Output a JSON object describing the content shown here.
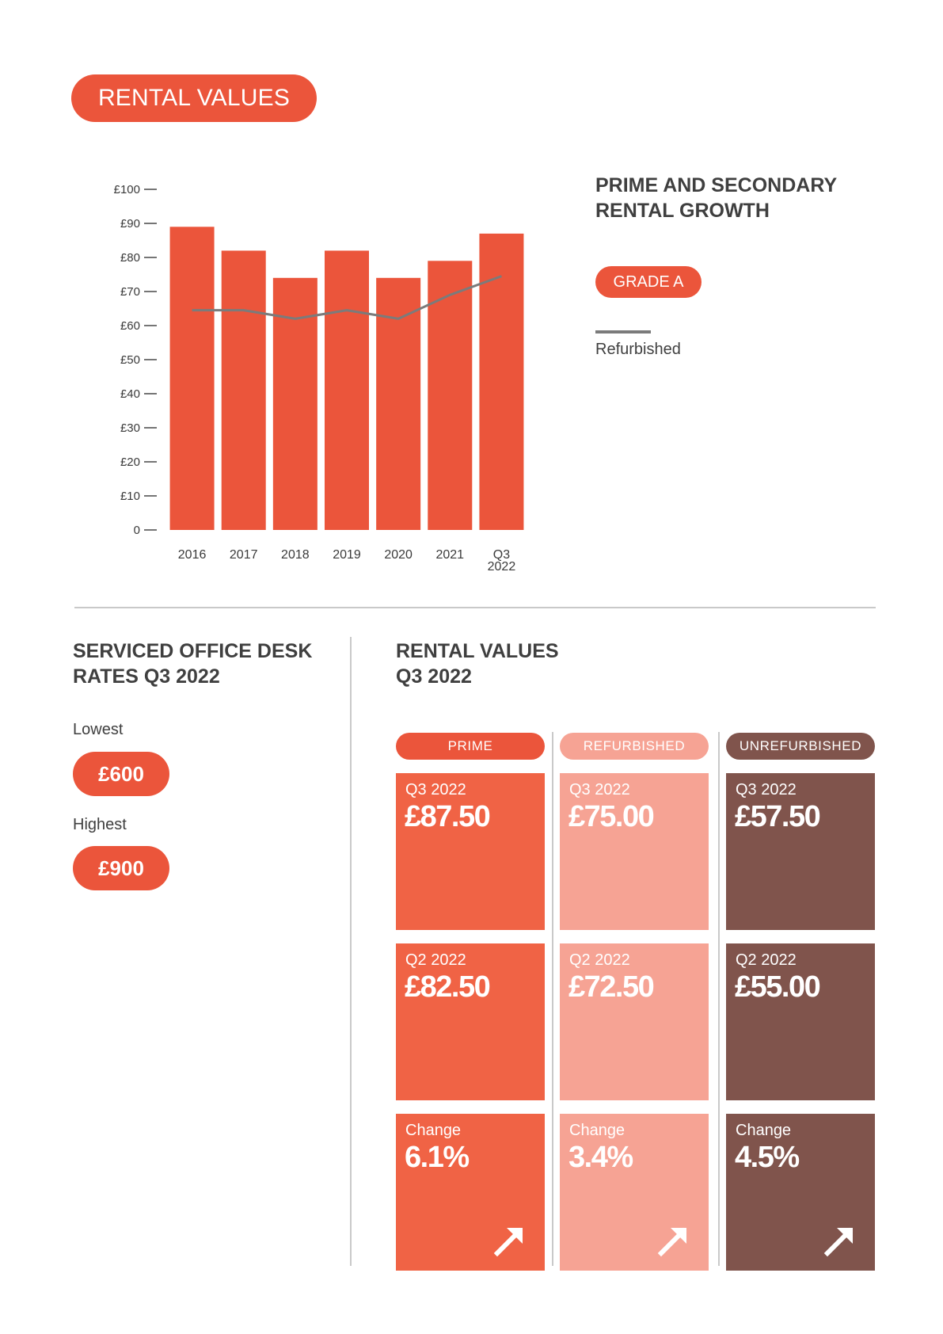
{
  "header": {
    "title": "RENTAL VALUES"
  },
  "chart_data": {
    "type": "bar",
    "title": "PRIME AND SECONDARY RENTAL GROWTH",
    "categories": [
      "2016",
      "2017",
      "2018",
      "2019",
      "2020",
      "2021",
      "Q3 2022"
    ],
    "category_lines": [
      [
        "2016"
      ],
      [
        "2017"
      ],
      [
        "2018"
      ],
      [
        "2019"
      ],
      [
        "2020"
      ],
      [
        "2021"
      ],
      [
        "Q3",
        "2022"
      ]
    ],
    "series": [
      {
        "name": "GRADE A",
        "type": "bar",
        "color": "#eb553b",
        "values": [
          89,
          82,
          74,
          82,
          74,
          79,
          87
        ]
      },
      {
        "name": "Refurbished",
        "type": "line",
        "color": "#7b7b7b",
        "values": [
          64.5,
          64.5,
          62,
          64.5,
          62,
          69,
          74.5
        ]
      }
    ],
    "yticks": [
      0,
      10,
      20,
      30,
      40,
      50,
      60,
      70,
      80,
      90,
      100
    ],
    "ytick_labels": [
      "0",
      "£10",
      "£20",
      "£30",
      "£40",
      "£50",
      "£60",
      "£70",
      "£80",
      "£90",
      "£100"
    ],
    "ylim": [
      0,
      100
    ],
    "xlabel": "",
    "ylabel": "",
    "grid": false,
    "legend_position": "right"
  },
  "legend": {
    "grade": "GRADE A",
    "refurbished": "Refurbished"
  },
  "desk": {
    "title_line1": "SERVICED OFFICE DESK",
    "title_line2": "RATES Q3 2022",
    "lowest_label": "Lowest",
    "lowest_value": "£600",
    "highest_label": "Highest",
    "highest_value": "£900"
  },
  "rental": {
    "title_line1": "RENTAL VALUES",
    "title_line2": "Q3 2022",
    "columns": [
      {
        "header": "PRIME",
        "color": "#f06345",
        "header_color": "#eb553b",
        "cards": [
          {
            "label": "Q3 2022",
            "value": "£87.50"
          },
          {
            "label": "Q2 2022",
            "value": "£82.50"
          },
          {
            "label": "Change",
            "value": "6.1%"
          }
        ]
      },
      {
        "header": "REFURBISHED",
        "color": "#f6a394",
        "header_color": "#f6a394",
        "cards": [
          {
            "label": "Q3 2022",
            "value": "£75.00"
          },
          {
            "label": "Q2 2022",
            "value": "£72.50"
          },
          {
            "label": "Change",
            "value": "3.4%"
          }
        ]
      },
      {
        "header": "UNREFURBISHED",
        "color": "#80544c",
        "header_color": "#80544c",
        "cards": [
          {
            "label": "Q3 2022",
            "value": "£57.50"
          },
          {
            "label": "Q2 2022",
            "value": "£55.00"
          },
          {
            "label": "Change",
            "value": "4.5%"
          }
        ]
      }
    ],
    "change_icon": "arrow-up-right-icon"
  }
}
